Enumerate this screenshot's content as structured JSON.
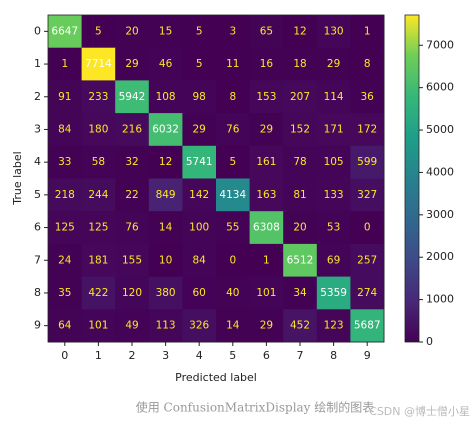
{
  "chart_data": {
    "type": "heatmap",
    "colormap": "viridis",
    "x_categories": [
      "0",
      "1",
      "2",
      "3",
      "4",
      "5",
      "6",
      "7",
      "8",
      "9"
    ],
    "y_categories": [
      "0",
      "1",
      "2",
      "3",
      "4",
      "5",
      "6",
      "7",
      "8",
      "9"
    ],
    "xlabel": "Predicted label",
    "ylabel": "True label",
    "z": [
      [
        6647,
        5,
        20,
        15,
        5,
        3,
        65,
        12,
        130,
        1
      ],
      [
        1,
        7714,
        29,
        46,
        5,
        11,
        16,
        18,
        29,
        8
      ],
      [
        91,
        233,
        5942,
        108,
        98,
        8,
        153,
        207,
        114,
        36
      ],
      [
        84,
        180,
        216,
        6032,
        29,
        76,
        29,
        152,
        171,
        172
      ],
      [
        33,
        58,
        32,
        12,
        5741,
        5,
        161,
        78,
        105,
        599
      ],
      [
        218,
        244,
        22,
        849,
        142,
        4134,
        163,
        81,
        133,
        327
      ],
      [
        125,
        125,
        76,
        14,
        100,
        55,
        6308,
        20,
        53,
        0
      ],
      [
        24,
        181,
        155,
        10,
        84,
        0,
        1,
        6512,
        69,
        257
      ],
      [
        35,
        422,
        120,
        380,
        60,
        40,
        101,
        34,
        5359,
        274
      ],
      [
        64,
        101,
        49,
        113,
        326,
        14,
        29,
        452,
        123,
        5687
      ]
    ],
    "clim": [
      0,
      7714
    ],
    "colorbar_ticks": [
      0,
      1000,
      2000,
      3000,
      4000,
      5000,
      6000,
      7000
    ],
    "caption": "使用 ConfusionMatrixDisplay 绘制的图表",
    "watermark": "CSDN @博士僧小星"
  }
}
